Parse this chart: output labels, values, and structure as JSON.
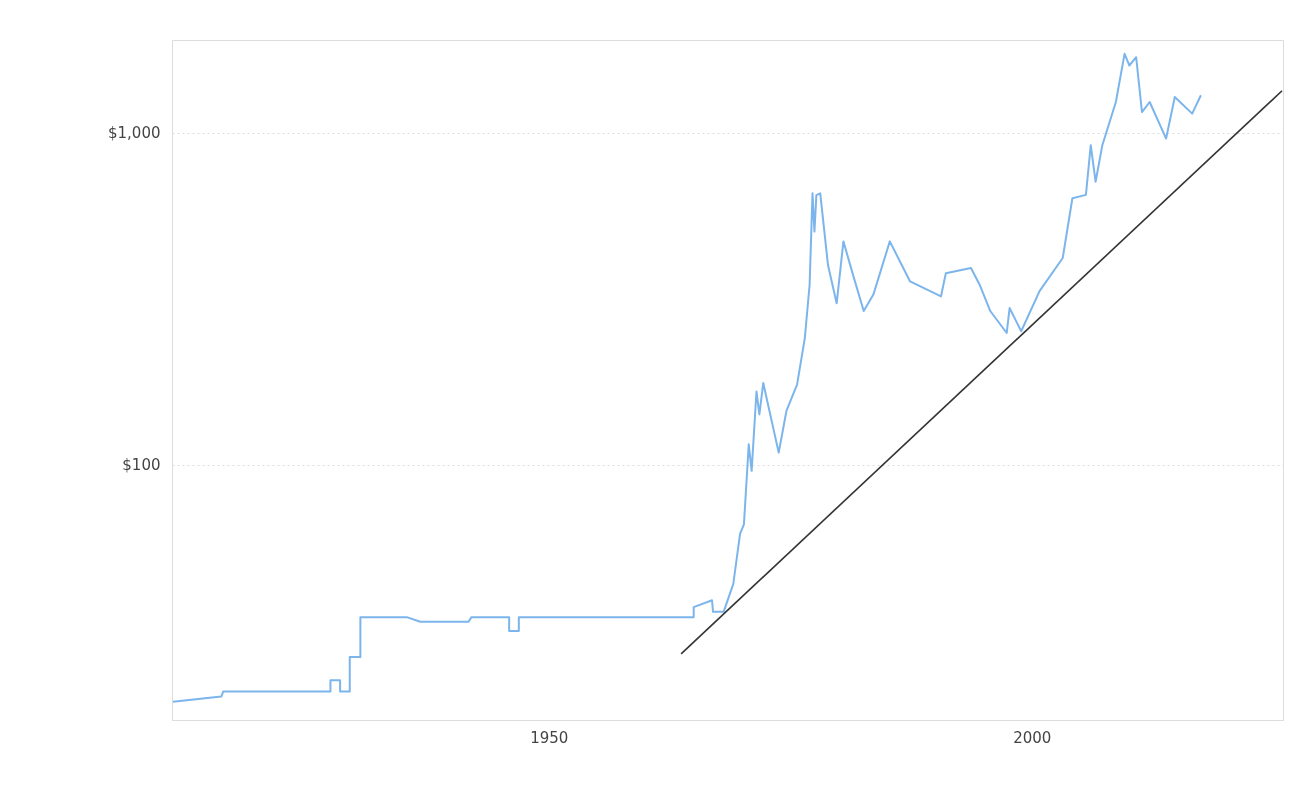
{
  "chart_data": {
    "type": "line",
    "xlim": [
      1911,
      2026
    ],
    "xticks": [
      1950,
      2000
    ],
    "ylim": [
      17,
      1900
    ],
    "yticks": [
      {
        "value": 100,
        "label": "$100"
      },
      {
        "value": 1000,
        "label": "$1,000"
      }
    ],
    "log": "y",
    "grid": "y",
    "marker": "none",
    "line_style": "solid",
    "series": [
      {
        "color": "#7cb5ec",
        "x": [
          1911.1,
          1916.1,
          1916.3,
          1927.4,
          1927.4,
          1928.4,
          1928.4,
          1929.4,
          1929.4,
          1930.5,
          1930.5,
          1935.3,
          1936.7,
          1941.7,
          1942,
          1945.9,
          1945.9,
          1946.9,
          1946.9,
          1965,
          1965,
          1966.9,
          1967,
          1968.1,
          1969.1,
          1969.8,
          1970.2,
          1970.7,
          1971.0,
          1971.5,
          1971.8,
          1972.2,
          1973.8,
          1974.6,
          1975.7,
          1976.5,
          1977.0,
          1977.3,
          1977.5,
          1977.7,
          1978.1,
          1978.9,
          1979.8,
          1980.5,
          1981.5,
          1982.6,
          1983.6,
          1985.3,
          1987.4,
          1990.6,
          1991.1,
          1993.7,
          1994.6,
          1995.7,
          1997.4,
          1997.7,
          1998.9,
          2000.8,
          2003.2,
          2004.2,
          2005.6,
          2006.1,
          2006.6,
          2007.3,
          2008.7,
          2009.6,
          2010.1,
          2010.8,
          2011.4,
          2012.2,
          2013.9,
          2014.8,
          2016.6,
          2017.5
        ],
        "values": [
          19.3,
          20.0,
          20.7,
          20.7,
          22.4,
          22.4,
          20.7,
          20.7,
          26.3,
          26.3,
          34.7,
          34.7,
          33.6,
          33.6,
          34.7,
          34.7,
          31.5,
          31.5,
          34.7,
          34.7,
          37.2,
          39,
          36,
          36,
          43.7,
          61.8,
          66,
          115,
          95.7,
          166,
          141.6,
          176,
          108.6,
          145,
          174,
          240,
          348,
          656,
          503,
          648,
          656,
          399,
          306,
          470,
          372,
          290,
          325,
          470,
          356,
          321,
          377,
          391,
          348,
          290,
          249,
          296,
          252,
          333,
          419,
          634,
          649,
          916,
          711,
          916,
          1236,
          1726,
          1592,
          1686,
          1153,
          1236,
          959,
          1280,
          1140,
          1295
        ]
      },
      {
        "type": "line",
        "color": "#333333",
        "x": [
          1963.7,
          2025.9
        ],
        "values": [
          26.9,
          1336
        ]
      }
    ]
  }
}
